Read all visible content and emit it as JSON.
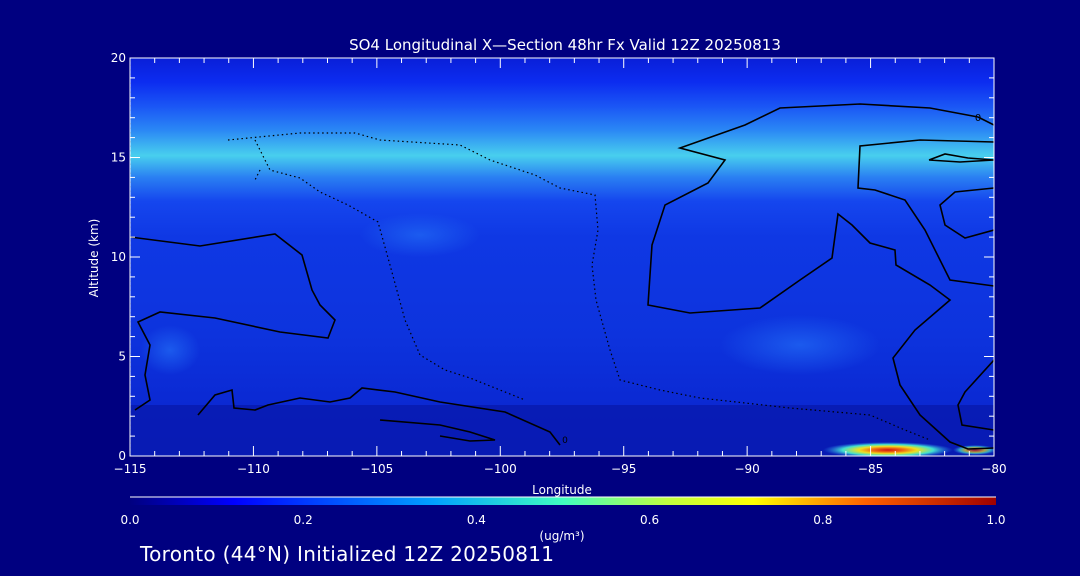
{
  "chart_data": {
    "type": "heatmap",
    "title": "SO4 Longitudinal X—Section 48hr  Fx Valid 12Z 20250813",
    "xlabel": "Longitude",
    "ylabel": "Altitude (km)",
    "xlim": [
      -115,
      -80
    ],
    "ylim": [
      0,
      20
    ],
    "x_ticks": [
      -115,
      -110,
      -105,
      -100,
      -95,
      -90,
      -85,
      -80
    ],
    "x_tick_labels": [
      "−115",
      "−110",
      "−105",
      "−100",
      "−95",
      "−90",
      "−85",
      "−80"
    ],
    "y_ticks": [
      0,
      5,
      10,
      15,
      20
    ],
    "y_tick_labels": [
      "0",
      "5",
      "10",
      "15",
      "20"
    ],
    "colorbar": {
      "min": 0.0,
      "max": 1.0,
      "tick_values": [
        0.0,
        0.2,
        0.4,
        0.6,
        0.8,
        1.0
      ],
      "tick_labels": [
        "0.0",
        "0.2",
        "0.4",
        "0.6",
        "0.8",
        "1.0"
      ],
      "units_label": "(ug/m³)",
      "colormap": "rainbow"
    },
    "contour_labels": [
      "0",
      "0"
    ],
    "grid": false
  },
  "footer": {
    "caption": "Toronto (44°N) Initialized 12Z 20250811"
  },
  "colors": {
    "background": "#000080",
    "text": "#ffffff",
    "contour": "#000000"
  }
}
